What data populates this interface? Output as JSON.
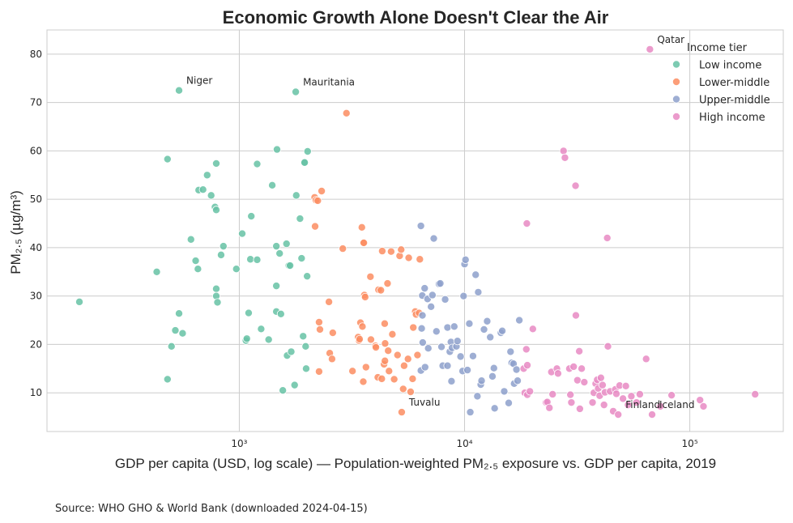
{
  "chart_data": {
    "type": "scatter",
    "title": "Economic Growth Alone Doesn't Clear the Air",
    "xlabel": "GDP per capita (USD, log scale) — Population-weighted PM₂.₅ exposure vs. GDP per capita, 2019",
    "ylabel": "PM₂.₅ (µg/m³)",
    "xscale": "log",
    "xlim": [
      140,
      260000
    ],
    "ylim": [
      2,
      85
    ],
    "x_ticks": [
      {
        "value": 1000,
        "label": "10³"
      },
      {
        "value": 10000,
        "label": "10⁴"
      },
      {
        "value": 100000,
        "label": "10⁵"
      }
    ],
    "y_ticks": [
      10,
      20,
      30,
      40,
      50,
      60,
      70,
      80
    ],
    "grid": true,
    "legend": {
      "title": "Income tier",
      "position": "top-right"
    },
    "source": "Source: WHO GHO & World Bank (downloaded 2024-04-15)",
    "series": [
      {
        "name": "Low income",
        "color": "#66c2a5",
        "points": [
          [
            195,
            28.8
          ],
          [
            430,
            35
          ],
          [
            480,
            58.3
          ],
          [
            480,
            12.8
          ],
          [
            500,
            19.6
          ],
          [
            520,
            22.9
          ],
          [
            540,
            26.4
          ],
          [
            560,
            22.3
          ],
          [
            540,
            72.5
          ],
          [
            610,
            41.7
          ],
          [
            640,
            37.3
          ],
          [
            655,
            35.6
          ],
          [
            660,
            51.9
          ],
          [
            690,
            52
          ],
          [
            720,
            55
          ],
          [
            750,
            50.8
          ],
          [
            780,
            48.4
          ],
          [
            790,
            57.4
          ],
          [
            790,
            47.8
          ],
          [
            790,
            31.5
          ],
          [
            790,
            30
          ],
          [
            800,
            28.7
          ],
          [
            830,
            38.5
          ],
          [
            850,
            40.3
          ],
          [
            970,
            35.6
          ],
          [
            1030,
            42.9
          ],
          [
            1070,
            20.8
          ],
          [
            1080,
            21.2
          ],
          [
            1100,
            26.5
          ],
          [
            1120,
            37.6
          ],
          [
            1130,
            46.5
          ],
          [
            1200,
            57.3
          ],
          [
            1200,
            37.5
          ],
          [
            1250,
            23.2
          ],
          [
            1350,
            21
          ],
          [
            1400,
            52.9
          ],
          [
            1460,
            40.3
          ],
          [
            1460,
            32.1
          ],
          [
            1460,
            26.8
          ],
          [
            1470,
            60.3
          ],
          [
            1510,
            38.8
          ],
          [
            1530,
            26.3
          ],
          [
            1560,
            10.5
          ],
          [
            1620,
            40.8
          ],
          [
            1630,
            17.7
          ],
          [
            1660,
            36.3
          ],
          [
            1680,
            36.3
          ],
          [
            1700,
            18.5
          ],
          [
            1760,
            11.6
          ],
          [
            1780,
            72.2
          ],
          [
            1790,
            50.8
          ],
          [
            1860,
            46
          ],
          [
            1890,
            37.8
          ],
          [
            1920,
            21.7
          ],
          [
            1940,
            57.6
          ],
          [
            1950,
            57.6
          ],
          [
            1970,
            19.6
          ],
          [
            1980,
            15
          ],
          [
            2000,
            34.1
          ],
          [
            2010,
            59.9
          ]
        ]
      },
      {
        "name": "Lower-middle",
        "color": "#fc8d62",
        "points": [
          [
            2160,
            50.4
          ],
          [
            2170,
            44.4
          ],
          [
            2190,
            49.8
          ],
          [
            2230,
            49.7
          ],
          [
            2260,
            24.6
          ],
          [
            2260,
            14.4
          ],
          [
            2280,
            23.1
          ],
          [
            2320,
            51.7
          ],
          [
            2500,
            28.8
          ],
          [
            2520,
            18.2
          ],
          [
            2580,
            17
          ],
          [
            2600,
            22.4
          ],
          [
            2880,
            39.8
          ],
          [
            2990,
            67.8
          ],
          [
            3180,
            14.5
          ],
          [
            3370,
            21.5
          ],
          [
            3400,
            20.8
          ],
          [
            3420,
            21.1
          ],
          [
            3450,
            24.5
          ],
          [
            3500,
            44.2
          ],
          [
            3520,
            23.7
          ],
          [
            3550,
            12.3
          ],
          [
            3550,
            41
          ],
          [
            3570,
            41
          ],
          [
            3590,
            30.2
          ],
          [
            3620,
            29.8
          ],
          [
            3650,
            15.3
          ],
          [
            3820,
            34
          ],
          [
            3840,
            21
          ],
          [
            4020,
            19.7
          ],
          [
            4040,
            19.4
          ],
          [
            4120,
            13.2
          ],
          [
            4150,
            31.3
          ],
          [
            4250,
            31.2
          ],
          [
            4290,
            12.9
          ],
          [
            4310,
            39.3
          ],
          [
            4390,
            15.9
          ],
          [
            4420,
            24.3
          ],
          [
            4430,
            16.6
          ],
          [
            4440,
            20.2
          ],
          [
            4550,
            32.6
          ],
          [
            4580,
            18.7
          ],
          [
            4620,
            14.5
          ],
          [
            4720,
            39.2
          ],
          [
            4780,
            22.1
          ],
          [
            4870,
            12.8
          ],
          [
            5040,
            17.8
          ],
          [
            5150,
            38.3
          ],
          [
            5230,
            39.6
          ],
          [
            5260,
            6
          ],
          [
            5340,
            10.8
          ],
          [
            5390,
            15.6
          ],
          [
            5610,
            17
          ],
          [
            5650,
            37.9
          ],
          [
            5760,
            10.2
          ],
          [
            5880,
            12.9
          ],
          [
            5920,
            23.5
          ],
          [
            6040,
            26.8
          ],
          [
            6090,
            26.2
          ],
          [
            6180,
            17.8
          ],
          [
            6280,
            26.5
          ],
          [
            6330,
            37.6
          ]
        ]
      },
      {
        "name": "Upper-middle",
        "color": "#8da0cb",
        "points": [
          [
            6400,
            14.6
          ],
          [
            6400,
            44.5
          ],
          [
            6450,
            23.3
          ],
          [
            6490,
            30.1
          ],
          [
            6500,
            26
          ],
          [
            6520,
            20.4
          ],
          [
            6650,
            31.6
          ],
          [
            6680,
            15.3
          ],
          [
            6850,
            29.4
          ],
          [
            6900,
            19.2
          ],
          [
            7100,
            27.8
          ],
          [
            7200,
            30.2
          ],
          [
            7300,
            41.9
          ],
          [
            7500,
            22.7
          ],
          [
            7700,
            32.5
          ],
          [
            7800,
            32.6
          ],
          [
            7900,
            19.5
          ],
          [
            8000,
            15.6
          ],
          [
            8200,
            29.3
          ],
          [
            8400,
            23.5
          ],
          [
            8400,
            15.6
          ],
          [
            8600,
            18.5
          ],
          [
            8700,
            20.5
          ],
          [
            8750,
            12.4
          ],
          [
            8800,
            19.3
          ],
          [
            9000,
            23.7
          ],
          [
            9200,
            19.6
          ],
          [
            9300,
            20.7
          ],
          [
            9600,
            17.5
          ],
          [
            9800,
            14.5
          ],
          [
            9900,
            30
          ],
          [
            10000,
            36.6
          ],
          [
            10100,
            37.5
          ],
          [
            10300,
            14.7
          ],
          [
            10500,
            24.3
          ],
          [
            10600,
            6
          ],
          [
            10900,
            17.6
          ],
          [
            11200,
            34.4
          ],
          [
            11400,
            9.3
          ],
          [
            11500,
            30.8
          ],
          [
            11800,
            11.7
          ],
          [
            11900,
            12.5
          ],
          [
            12200,
            23.1
          ],
          [
            12600,
            24.8
          ],
          [
            13000,
            21.5
          ],
          [
            13300,
            13.4
          ],
          [
            13500,
            15.1
          ],
          [
            13600,
            6.8
          ],
          [
            14500,
            22.4
          ],
          [
            14700,
            22.8
          ],
          [
            15000,
            10.3
          ],
          [
            15700,
            7.9
          ],
          [
            16000,
            18.5
          ],
          [
            16200,
            16.2
          ],
          [
            16500,
            16
          ],
          [
            16600,
            11.9
          ],
          [
            17000,
            14.8
          ],
          [
            17200,
            12.5
          ],
          [
            17500,
            25
          ]
        ]
      },
      {
        "name": "High income",
        "color": "#e78ac3",
        "points": [
          [
            18300,
            15
          ],
          [
            18500,
            10
          ],
          [
            18800,
            19
          ],
          [
            18900,
            45
          ],
          [
            19000,
            15.7
          ],
          [
            19000,
            9.6
          ],
          [
            19500,
            10.3
          ],
          [
            20100,
            23.2
          ],
          [
            23000,
            8
          ],
          [
            23300,
            8.1
          ],
          [
            23800,
            6.9
          ],
          [
            24300,
            14.3
          ],
          [
            24600,
            9.7
          ],
          [
            25700,
            15
          ],
          [
            26000,
            14
          ],
          [
            27500,
            60
          ],
          [
            27900,
            58.6
          ],
          [
            29200,
            15
          ],
          [
            29500,
            9.6
          ],
          [
            29800,
            8
          ],
          [
            30500,
            15.4
          ],
          [
            31100,
            52.8
          ],
          [
            31200,
            26
          ],
          [
            31700,
            12.6
          ],
          [
            32300,
            18.6
          ],
          [
            32500,
            6.7
          ],
          [
            33100,
            15
          ],
          [
            34000,
            12.2
          ],
          [
            37000,
            8
          ],
          [
            37500,
            10
          ],
          [
            38200,
            11.9
          ],
          [
            38800,
            12.7
          ],
          [
            39200,
            10.9
          ],
          [
            39800,
            9.4
          ],
          [
            40300,
            13.1
          ],
          [
            41000,
            11.6
          ],
          [
            41600,
            7.5
          ],
          [
            42000,
            10.1
          ],
          [
            43000,
            42
          ],
          [
            43300,
            19.6
          ],
          [
            44300,
            10.3
          ],
          [
            45700,
            6.2
          ],
          [
            46700,
            10.7
          ],
          [
            47200,
            9.8
          ],
          [
            48100,
            5.5
          ],
          [
            48800,
            11.5
          ],
          [
            50500,
            8.8
          ],
          [
            52000,
            11.4
          ],
          [
            53200,
            7.5
          ],
          [
            55000,
            9.3
          ],
          [
            58000,
            8
          ],
          [
            60000,
            9.7
          ],
          [
            64000,
            17
          ],
          [
            66500,
            81
          ],
          [
            68000,
            5.5
          ],
          [
            74000,
            7.2
          ],
          [
            83000,
            9.5
          ],
          [
            111000,
            8.5
          ],
          [
            115000,
            7.2
          ],
          [
            195000,
            9.7
          ]
        ]
      }
    ],
    "annotations": [
      {
        "text": "Qatar",
        "x": 66500,
        "y": 81
      },
      {
        "text": "Niger",
        "x": 540,
        "y": 72.5
      },
      {
        "text": "Mauritania",
        "x": 1780,
        "y": 72.2
      },
      {
        "text": "Tuvalu",
        "x": 5260,
        "y": 6
      },
      {
        "text": "Finland",
        "x": 48100,
        "y": 5.5
      },
      {
        "text": "Iceland",
        "x": 68000,
        "y": 5.5
      }
    ]
  }
}
